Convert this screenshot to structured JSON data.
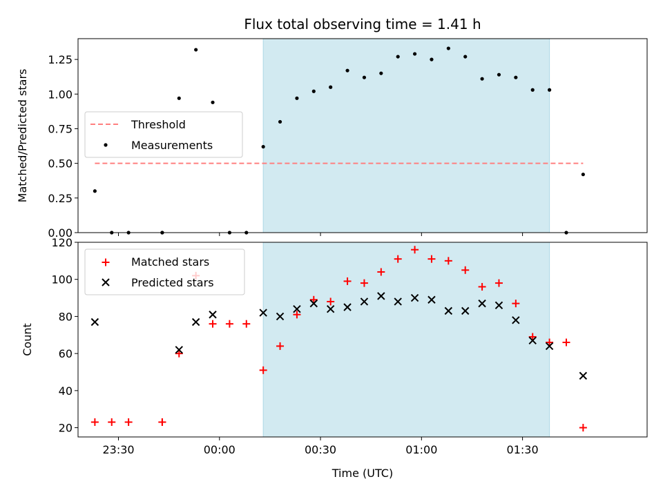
{
  "chart_data": [
    {
      "type": "scatter",
      "title": "Flux total observing time = 1.41 h",
      "xlabel": "",
      "ylabel": "Matched/Predicted stars",
      "ylim": [
        0,
        1.4
      ],
      "xlim": [
        "23:18",
        "02:07"
      ],
      "yticks": [
        "0.00",
        "0.25",
        "0.50",
        "0.75",
        "1.00",
        "1.25"
      ],
      "shaded_interval": [
        "00:13",
        "01:38"
      ],
      "shaded_color": "#add8e6",
      "legend_position": "center-left",
      "series": [
        {
          "name": "Threshold",
          "kind": "dashed-line",
          "color": "#ff7f7f",
          "points": [
            [
              "23:23",
              0.5
            ],
            [
              "01:48",
              0.5
            ]
          ]
        },
        {
          "name": "Measurements",
          "kind": "dot",
          "color": "#000000",
          "points": [
            [
              "23:23",
              0.3
            ],
            [
              "23:28",
              0.0
            ],
            [
              "23:33",
              0.0
            ],
            [
              "23:43",
              0.0
            ],
            [
              "23:43",
              0.0
            ],
            [
              "23:48",
              0.97
            ],
            [
              "23:53",
              1.32
            ],
            [
              "23:58",
              0.94
            ],
            [
              "00:03",
              0.0
            ],
            [
              "00:08",
              0.0
            ],
            [
              "00:13",
              0.62
            ],
            [
              "00:18",
              0.8
            ],
            [
              "00:23",
              0.97
            ],
            [
              "00:28",
              1.02
            ],
            [
              "00:33",
              1.05
            ],
            [
              "00:38",
              1.17
            ],
            [
              "00:43",
              1.12
            ],
            [
              "00:48",
              1.15
            ],
            [
              "00:53",
              1.27
            ],
            [
              "00:58",
              1.29
            ],
            [
              "01:03",
              1.25
            ],
            [
              "01:08",
              1.33
            ],
            [
              "01:13",
              1.27
            ],
            [
              "01:18",
              1.11
            ],
            [
              "01:23",
              1.14
            ],
            [
              "01:28",
              1.12
            ],
            [
              "01:33",
              1.03
            ],
            [
              "01:38",
              1.03
            ],
            [
              "01:43",
              0.0
            ],
            [
              "01:48",
              0.42
            ]
          ]
        }
      ]
    },
    {
      "type": "scatter",
      "title": "",
      "xlabel": "Time (UTC)",
      "ylabel": "Count",
      "ylim": [
        15,
        120
      ],
      "xlim": [
        "23:18",
        "02:07"
      ],
      "yticks": [
        "20",
        "40",
        "60",
        "80",
        "100",
        "120"
      ],
      "xticks": [
        "23:30",
        "00:00",
        "00:30",
        "01:00",
        "01:30"
      ],
      "shaded_interval": [
        "00:13",
        "01:38"
      ],
      "shaded_color": "#add8e6",
      "legend_position": "upper-left",
      "series": [
        {
          "name": "Matched stars",
          "kind": "plus",
          "color": "#ff0000",
          "points": [
            [
              "23:23",
              23
            ],
            [
              "23:28",
              23
            ],
            [
              "23:33",
              23
            ],
            [
              "23:43",
              23
            ],
            [
              "23:43",
              23
            ],
            [
              "23:48",
              60
            ],
            [
              "23:53",
              102
            ],
            [
              "23:58",
              76
            ],
            [
              "00:03",
              76
            ],
            [
              "00:08",
              76
            ],
            [
              "00:13",
              51
            ],
            [
              "00:18",
              64
            ],
            [
              "00:23",
              81
            ],
            [
              "00:28",
              89
            ],
            [
              "00:33",
              88
            ],
            [
              "00:38",
              99
            ],
            [
              "00:43",
              98
            ],
            [
              "00:48",
              104
            ],
            [
              "00:53",
              111
            ],
            [
              "00:58",
              116
            ],
            [
              "01:03",
              111
            ],
            [
              "01:08",
              110
            ],
            [
              "01:13",
              105
            ],
            [
              "01:18",
              96
            ],
            [
              "01:23",
              98
            ],
            [
              "01:28",
              87
            ],
            [
              "01:33",
              69
            ],
            [
              "01:38",
              66
            ],
            [
              "01:43",
              66
            ],
            [
              "01:48",
              20
            ]
          ]
        },
        {
          "name": "Predicted stars",
          "kind": "x",
          "color": "#000000",
          "points": [
            [
              "23:23",
              77
            ],
            [
              "23:48",
              62
            ],
            [
              "23:53",
              77
            ],
            [
              "23:58",
              81
            ],
            [
              "00:13",
              82
            ],
            [
              "00:18",
              80
            ],
            [
              "00:23",
              84
            ],
            [
              "00:28",
              87
            ],
            [
              "00:33",
              84
            ],
            [
              "00:38",
              85
            ],
            [
              "00:43",
              88
            ],
            [
              "00:48",
              91
            ],
            [
              "00:53",
              88
            ],
            [
              "00:58",
              90
            ],
            [
              "01:03",
              89
            ],
            [
              "01:08",
              83
            ],
            [
              "01:13",
              83
            ],
            [
              "01:18",
              87
            ],
            [
              "01:23",
              86
            ],
            [
              "01:28",
              78
            ],
            [
              "01:33",
              67
            ],
            [
              "01:38",
              64
            ],
            [
              "01:48",
              48
            ]
          ]
        }
      ]
    }
  ]
}
